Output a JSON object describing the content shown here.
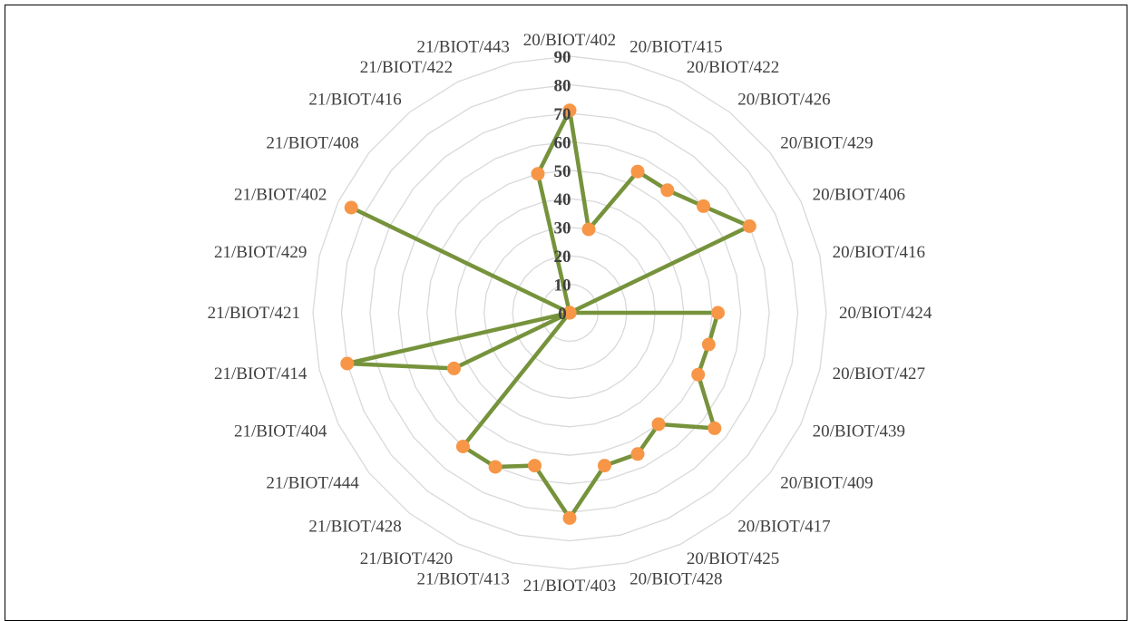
{
  "chart_data": {
    "type": "radar",
    "title": "",
    "categories": [
      "20/BIOT/402",
      "20/BIOT/415",
      "20/BIOT/422",
      "20/BIOT/426",
      "20/BIOT/429",
      "20/BIOT/406",
      "20/BIOT/416",
      "20/BIOT/424",
      "20/BIOT/427",
      "20/BIOT/439",
      "20/BIOT/409",
      "20/BIOT/417",
      "20/BIOT/425",
      "20/BIOT/428",
      "21/BIOT/403",
      "21/BIOT/413",
      "21/BIOT/420",
      "21/BIOT/428",
      "21/BIOT/444",
      "21/BIOT/404",
      "21/BIOT/414",
      "21/BIOT/421",
      "21/BIOT/429",
      "21/BIOT/402",
      "21/BIOT/408",
      "21/BIOT/416",
      "21/BIOT/422",
      "21/BIOT/443"
    ],
    "values": [
      71,
      30,
      55,
      55,
      60,
      70,
      0,
      52,
      50,
      50,
      65,
      50,
      55,
      55,
      72,
      55,
      60,
      60,
      0,
      45,
      80,
      0,
      0,
      85,
      0,
      0,
      0,
      50
    ],
    "rlim": [
      0,
      90
    ],
    "ticks": [
      "0",
      "10",
      "20",
      "30",
      "40",
      "50",
      "60",
      "70",
      "80",
      "90"
    ],
    "grid": true,
    "legend": "none",
    "colors": {
      "line": "#76933c",
      "marker": "#f79646",
      "grid": "#d9d9d9",
      "text": "#404040"
    }
  }
}
